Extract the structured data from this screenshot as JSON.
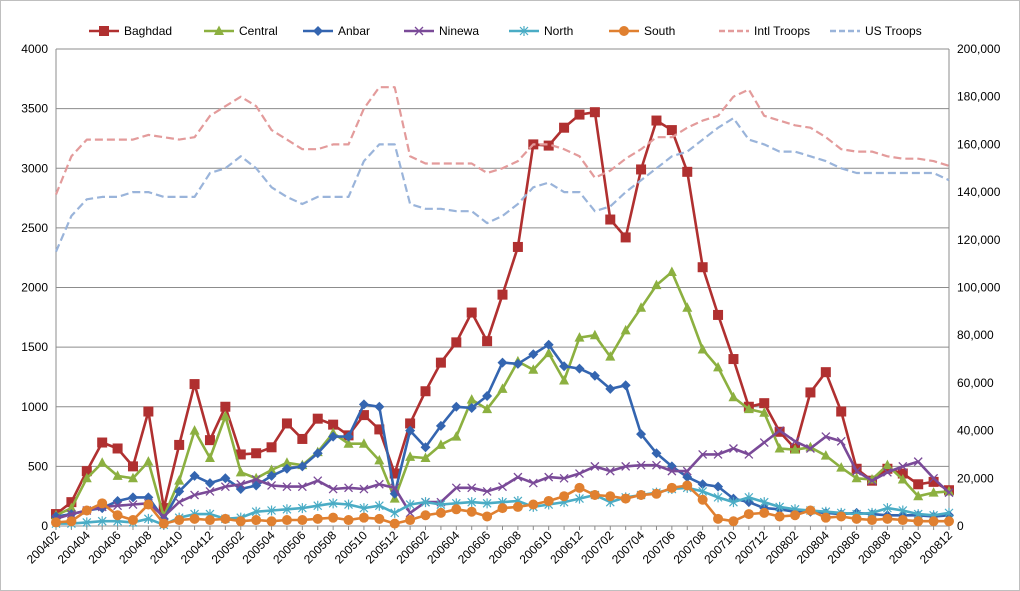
{
  "chart_data": {
    "type": "line",
    "title": "",
    "xlabel": "",
    "ylabel": "",
    "y2label": "",
    "grid": "horizontal",
    "legend_position": "top",
    "x": [
      "200402",
      "200403",
      "200404",
      "200405",
      "200406",
      "200407",
      "200408",
      "200409",
      "200410",
      "200411",
      "200412",
      "200501",
      "200502",
      "200503",
      "200504",
      "200505",
      "200506",
      "200507",
      "200508",
      "200509",
      "200510",
      "200511",
      "200512",
      "200601",
      "200602",
      "200603",
      "200604",
      "200605",
      "200606",
      "200607",
      "200608",
      "200609",
      "200610",
      "200611",
      "200612",
      "200701",
      "200702",
      "200703",
      "200704",
      "200705",
      "200706",
      "200707",
      "200708",
      "200709",
      "200710",
      "200711",
      "200712",
      "200801",
      "200802",
      "200803",
      "200804",
      "200805",
      "200806",
      "200807",
      "200808",
      "200809",
      "200810",
      "200811",
      "200812"
    ],
    "x_tick_labels": [
      "200402",
      "200404",
      "200406",
      "200408",
      "200410",
      "200412",
      "200502",
      "200504",
      "200506",
      "200508",
      "200510",
      "200512",
      "200602",
      "200604",
      "200606",
      "200608",
      "200610",
      "200612",
      "200702",
      "200704",
      "200706",
      "200708",
      "200710",
      "200712",
      "200802",
      "200804",
      "200806",
      "200808",
      "200810",
      "200812"
    ],
    "ylim": [
      0,
      4000
    ],
    "y_ticks": [
      0,
      500,
      1000,
      1500,
      2000,
      2500,
      3000,
      3500,
      4000
    ],
    "y_tick_labels": [
      "0",
      "500",
      "1000",
      "1500",
      "2000",
      "2500",
      "3000",
      "3500",
      "4000"
    ],
    "y2lim": [
      0,
      200000
    ],
    "y2_ticks": [
      0,
      20000,
      40000,
      60000,
      80000,
      100000,
      120000,
      140000,
      160000,
      180000,
      200000
    ],
    "y2_tick_labels": [
      "0",
      "20,000",
      "40,000",
      "60,000",
      "80,000",
      "100,000",
      "120,000",
      "140,000",
      "160,000",
      "180,000",
      "200,000"
    ],
    "series": [
      {
        "name": "Baghdad",
        "color": "#b03030",
        "marker": "square",
        "axis": "left",
        "dash": false,
        "values": [
          100,
          200,
          460,
          700,
          650,
          500,
          960,
          150,
          680,
          1190,
          720,
          1000,
          600,
          610,
          660,
          860,
          730,
          900,
          850,
          760,
          930,
          810,
          440,
          860,
          1130,
          1370,
          1540,
          1790,
          1550,
          1940,
          2340,
          3200,
          3190,
          3340,
          3450,
          3470,
          2570,
          2420,
          2990,
          3400,
          3320,
          2970,
          2170,
          1770,
          1400,
          1000,
          1030,
          790,
          650,
          1120,
          1290,
          960,
          480,
          380,
          480,
          440,
          350,
          370,
          300
        ]
      },
      {
        "name": "Central",
        "color": "#8cb040",
        "marker": "triangle",
        "axis": "left",
        "dash": false,
        "values": [
          90,
          150,
          400,
          530,
          420,
          400,
          540,
          80,
          380,
          800,
          570,
          920,
          450,
          400,
          470,
          530,
          510,
          620,
          780,
          690,
          690,
          550,
          230,
          580,
          570,
          680,
          750,
          1060,
          980,
          1150,
          1380,
          1310,
          1450,
          1220,
          1580,
          1600,
          1420,
          1640,
          1830,
          2020,
          2130,
          1830,
          1480,
          1330,
          1080,
          980,
          950,
          650,
          640,
          660,
          590,
          490,
          400,
          390,
          510,
          390,
          250,
          280,
          290
        ]
      },
      {
        "name": "Anbar",
        "color": "#3465b0",
        "marker": "diamond",
        "axis": "left",
        "dash": false,
        "values": [
          80,
          100,
          130,
          150,
          210,
          240,
          240,
          60,
          290,
          420,
          360,
          400,
          310,
          340,
          420,
          480,
          500,
          610,
          750,
          750,
          1020,
          1000,
          270,
          800,
          660,
          840,
          1000,
          990,
          1090,
          1370,
          1360,
          1440,
          1520,
          1340,
          1320,
          1260,
          1150,
          1180,
          770,
          610,
          500,
          410,
          350,
          330,
          230,
          200,
          150,
          140,
          120,
          120,
          110,
          100,
          110,
          100,
          90,
          90,
          90,
          80,
          90
        ]
      },
      {
        "name": "Ninewa",
        "color": "#7a4a98",
        "marker": "x",
        "axis": "left",
        "dash": false,
        "values": [
          60,
          100,
          130,
          160,
          170,
          180,
          190,
          80,
          200,
          260,
          290,
          330,
          350,
          390,
          340,
          330,
          330,
          380,
          310,
          320,
          310,
          350,
          320,
          110,
          200,
          200,
          320,
          320,
          290,
          330,
          410,
          360,
          410,
          400,
          440,
          500,
          460,
          500,
          510,
          510,
          460,
          460,
          600,
          600,
          650,
          600,
          700,
          800,
          710,
          650,
          750,
          710,
          460,
          380,
          450,
          500,
          540,
          400,
          280
        ]
      },
      {
        "name": "North",
        "color": "#4aacc5",
        "marker": "star",
        "axis": "left",
        "dash": false,
        "values": [
          20,
          20,
          30,
          40,
          40,
          30,
          60,
          10,
          70,
          100,
          100,
          60,
          70,
          120,
          130,
          140,
          150,
          170,
          190,
          180,
          150,
          170,
          110,
          180,
          200,
          180,
          190,
          200,
          190,
          200,
          210,
          160,
          180,
          200,
          230,
          260,
          200,
          240,
          260,
          280,
          310,
          320,
          290,
          240,
          200,
          240,
          200,
          160,
          140,
          130,
          120,
          110,
          100,
          110,
          150,
          130,
          100,
          90,
          110
        ]
      },
      {
        "name": "South",
        "color": "#e08030",
        "marker": "circle",
        "axis": "left",
        "dash": false,
        "values": [
          30,
          40,
          130,
          190,
          90,
          50,
          180,
          20,
          50,
          60,
          50,
          60,
          40,
          50,
          40,
          50,
          50,
          60,
          70,
          50,
          70,
          60,
          20,
          50,
          90,
          110,
          140,
          120,
          80,
          150,
          160,
          180,
          210,
          250,
          320,
          260,
          250,
          230,
          260,
          270,
          320,
          340,
          220,
          60,
          40,
          100,
          110,
          80,
          90,
          130,
          70,
          80,
          60,
          50,
          60,
          50,
          40,
          40,
          40
        ]
      },
      {
        "name": "Intl Troops",
        "color": "#e39b9b",
        "marker": "none",
        "axis": "right",
        "dash": true,
        "values": [
          139000,
          155000,
          162000,
          162000,
          162000,
          162000,
          164000,
          163000,
          162000,
          163000,
          172000,
          176000,
          180000,
          176000,
          166000,
          162000,
          158000,
          158000,
          160000,
          160000,
          175000,
          184000,
          184000,
          155000,
          152000,
          152000,
          152000,
          152000,
          148000,
          150000,
          153000,
          160000,
          160000,
          158000,
          155000,
          146000,
          149000,
          154000,
          158000,
          163000,
          163000,
          167000,
          170000,
          172000,
          180000,
          183000,
          172000,
          170000,
          168000,
          167000,
          163000,
          158000,
          157000,
          157000,
          155000,
          154000,
          154000,
          153000,
          151000
        ]
      },
      {
        "name": "US Troops",
        "color": "#9ab4da",
        "marker": "none",
        "axis": "right",
        "dash": true,
        "values": [
          115000,
          130000,
          137000,
          138000,
          138000,
          140000,
          140000,
          138000,
          138000,
          138000,
          148000,
          150000,
          155000,
          150000,
          142000,
          138000,
          135000,
          138000,
          138000,
          138000,
          153000,
          160000,
          160000,
          135000,
          133000,
          133000,
          132000,
          132000,
          127000,
          130000,
          135000,
          142000,
          144000,
          140000,
          140000,
          132000,
          134000,
          140000,
          145000,
          150000,
          155000,
          157000,
          162000,
          167000,
          171000,
          162000,
          160000,
          157000,
          157000,
          155000,
          153000,
          150000,
          148000,
          148000,
          148000,
          148000,
          148000,
          148000,
          145000
        ]
      }
    ]
  }
}
